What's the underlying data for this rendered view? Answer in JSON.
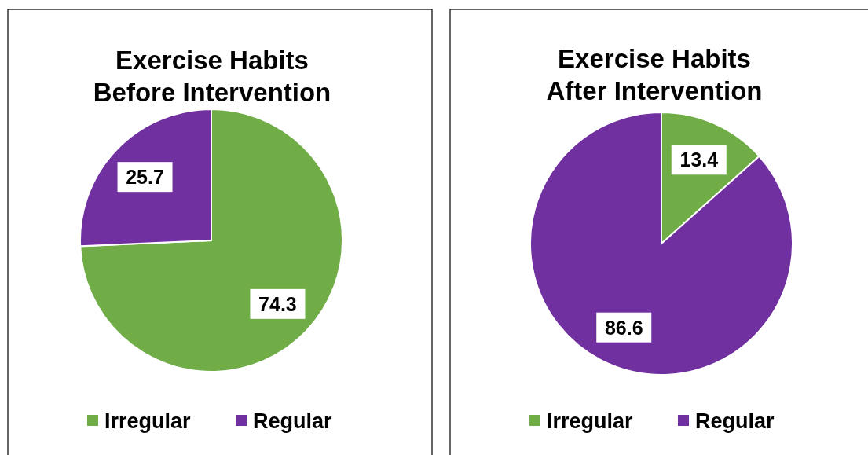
{
  "chart_data": [
    {
      "type": "pie",
      "title": "Exercise Habits\nBefore Intervention",
      "categories": [
        "Irregular",
        "Regular"
      ],
      "values": [
        74.3,
        25.7
      ],
      "colors": [
        "#70ad47",
        "#7030a0"
      ],
      "data_labels": true,
      "legend": "bottom"
    },
    {
      "type": "pie",
      "title": "Exercise Habits\nAfter Intervention",
      "categories": [
        "Irregular",
        "Regular"
      ],
      "values": [
        13.4,
        86.6
      ],
      "colors": [
        "#70ad47",
        "#7030a0"
      ],
      "data_labels": true,
      "legend": "bottom"
    }
  ]
}
